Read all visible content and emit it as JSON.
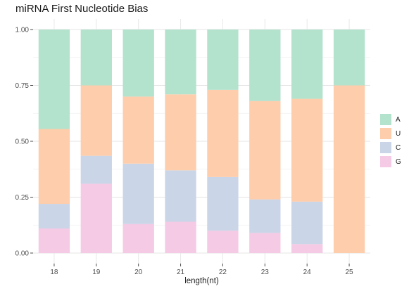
{
  "chart_data": {
    "type": "bar",
    "stacked": true,
    "title": "miRNA First Nucleotide Bias",
    "xlabel": "length(nt)",
    "ylabel": "",
    "ylim": [
      0,
      1
    ],
    "yticks": [
      "0.00",
      "0.25",
      "0.50",
      "0.75",
      "1.00"
    ],
    "categories": [
      "18",
      "19",
      "20",
      "21",
      "22",
      "23",
      "24",
      "25"
    ],
    "grid": true,
    "legend_position": "right",
    "series": [
      {
        "name": "G",
        "color": "#F4CAE4",
        "values": [
          0.11,
          0.31,
          0.13,
          0.14,
          0.1,
          0.09,
          0.04,
          0.0
        ]
      },
      {
        "name": "C",
        "color": "#CBD5E8",
        "values": [
          0.11,
          0.125,
          0.27,
          0.23,
          0.24,
          0.15,
          0.19,
          0.0
        ]
      },
      {
        "name": "U",
        "color": "#FDCDAC",
        "values": [
          0.335,
          0.315,
          0.3,
          0.34,
          0.39,
          0.44,
          0.46,
          0.75
        ]
      },
      {
        "name": "A",
        "color": "#B3E2CD",
        "values": [
          0.445,
          0.25,
          0.3,
          0.29,
          0.27,
          0.32,
          0.31,
          0.25
        ]
      }
    ],
    "legend_order": [
      "A",
      "U",
      "C",
      "G"
    ]
  }
}
